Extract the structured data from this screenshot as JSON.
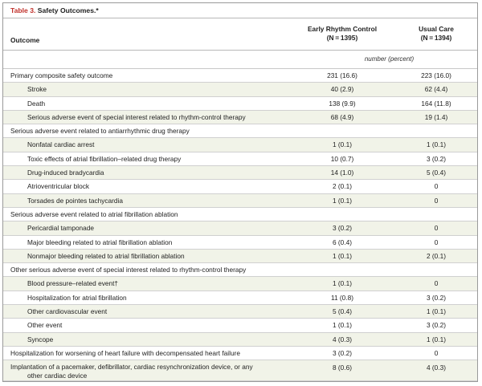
{
  "caption": {
    "label": "Table 3.",
    "title": "Safety Outcomes.*"
  },
  "header": {
    "col_outcome": "Outcome",
    "col_early_name": "Early Rhythm Control",
    "col_early_n": "(N = 1395)",
    "col_usual_name": "Usual Care",
    "col_usual_n": "(N = 1394)"
  },
  "unit_label": "number (percent)",
  "rows": [
    {
      "label": "Primary composite safety outcome",
      "level": 0,
      "early": "231 (16.6)",
      "usual": "223 (16.0)"
    },
    {
      "label": "Stroke",
      "level": 1,
      "early": "40 (2.9)",
      "usual": "62 (4.4)"
    },
    {
      "label": "Death",
      "level": 1,
      "early": "138 (9.9)",
      "usual": "164 (11.8)"
    },
    {
      "label": "Serious adverse event of special interest related to rhythm-control therapy",
      "level": 1,
      "early": "68 (4.9)",
      "usual": "19 (1.4)"
    },
    {
      "label": "Serious adverse event related to antiarrhythmic drug therapy",
      "level": 0,
      "early": "",
      "usual": ""
    },
    {
      "label": "Nonfatal cardiac arrest",
      "level": 1,
      "early": "1 (0.1)",
      "usual": "1 (0.1)"
    },
    {
      "label": "Toxic effects of atrial fibrillation–related drug therapy",
      "level": 1,
      "early": "10 (0.7)",
      "usual": "3 (0.2)"
    },
    {
      "label": "Drug-induced bradycardia",
      "level": 1,
      "early": "14 (1.0)",
      "usual": "5 (0.4)"
    },
    {
      "label": "Atrioventricular block",
      "level": 1,
      "early": "2 (0.1)",
      "usual": "0"
    },
    {
      "label": "Torsades de pointes tachycardia",
      "level": 1,
      "early": "1 (0.1)",
      "usual": "0"
    },
    {
      "label": "Serious adverse event related to atrial fibrillation ablation",
      "level": 0,
      "early": "",
      "usual": ""
    },
    {
      "label": "Pericardial tamponade",
      "level": 1,
      "early": "3 (0.2)",
      "usual": "0"
    },
    {
      "label": "Major bleeding related to atrial fibrillation ablation",
      "level": 1,
      "early": "6 (0.4)",
      "usual": "0"
    },
    {
      "label": "Nonmajor bleeding related to atrial fibrillation ablation",
      "level": 1,
      "early": "1 (0.1)",
      "usual": "2 (0.1)"
    },
    {
      "label": "Other serious adverse event of special interest related to rhythm-control therapy",
      "level": 0,
      "early": "",
      "usual": ""
    },
    {
      "label": "Blood pressure–related event†",
      "level": 1,
      "early": "1 (0.1)",
      "usual": "0"
    },
    {
      "label": "Hospitalization for atrial fibrillation",
      "level": 1,
      "early": "11 (0.8)",
      "usual": "3 (0.2)"
    },
    {
      "label": "Other cardiovascular event",
      "level": 1,
      "early": "5 (0.4)",
      "usual": "1 (0.1)"
    },
    {
      "label": "Other event",
      "level": 1,
      "early": "1 (0.1)",
      "usual": "3 (0.2)"
    },
    {
      "label": "Syncope",
      "level": 1,
      "early": "4 (0.3)",
      "usual": "1 (0.1)"
    },
    {
      "label": "Hospitalization for worsening of heart failure with decompensated heart failure",
      "level": 0,
      "early": "3 (0.2)",
      "usual": "0"
    },
    {
      "label": "Implantation of a pacemaker, defibrillator, cardiac resynchronization device, or any",
      "label_cont": "other cardiac device",
      "level": 0,
      "early": "8 (0.6)",
      "usual": "4 (0.3)"
    }
  ],
  "colors": {
    "label_red": "#c0302a",
    "shade": "#f1f3e8"
  }
}
